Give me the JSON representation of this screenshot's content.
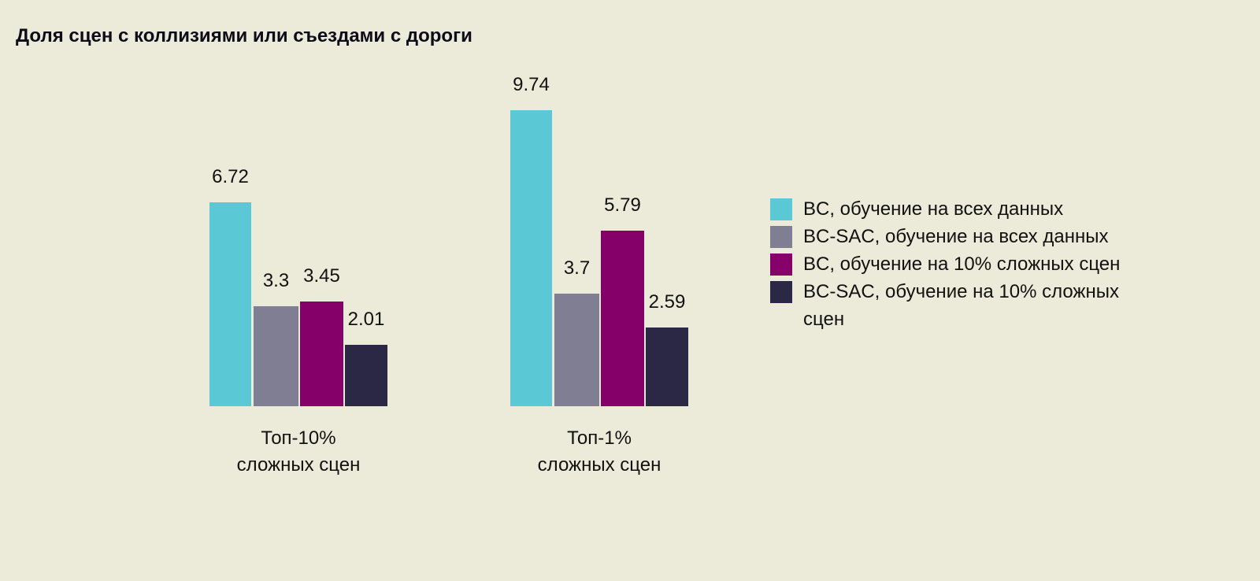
{
  "chart_data": {
    "type": "bar",
    "title": "Доля сцен с коллизиями или съездами с дороги",
    "categories": [
      [
        "Топ-10%",
        "сложных сцен"
      ],
      [
        "Топ-1%",
        "сложных сцен"
      ]
    ],
    "series": [
      {
        "name": "BC, обучение на всех данных",
        "color": "#5BC8D6",
        "values": [
          6.72,
          9.74
        ],
        "labels": [
          "6.72",
          "9.74"
        ]
      },
      {
        "name": "BC-SAC, обучение на всех данных",
        "color": "#7F7E92",
        "values": [
          3.3,
          3.7
        ],
        "labels": [
          "3.3",
          "3.7"
        ]
      },
      {
        "name": "BC, обучение на 10% сложных сцен",
        "color": "#850069",
        "values": [
          3.45,
          5.79
        ],
        "labels": [
          "3.45",
          "5.79"
        ]
      },
      {
        "name": "BC-SAC, обучение на 10% сложных сцен",
        "color": "#2B2846",
        "values": [
          2.01,
          2.59
        ],
        "labels": [
          "2.01",
          "2.59"
        ]
      }
    ],
    "legend_position": "right",
    "grid": false,
    "ylim": [
      0,
      10
    ]
  }
}
